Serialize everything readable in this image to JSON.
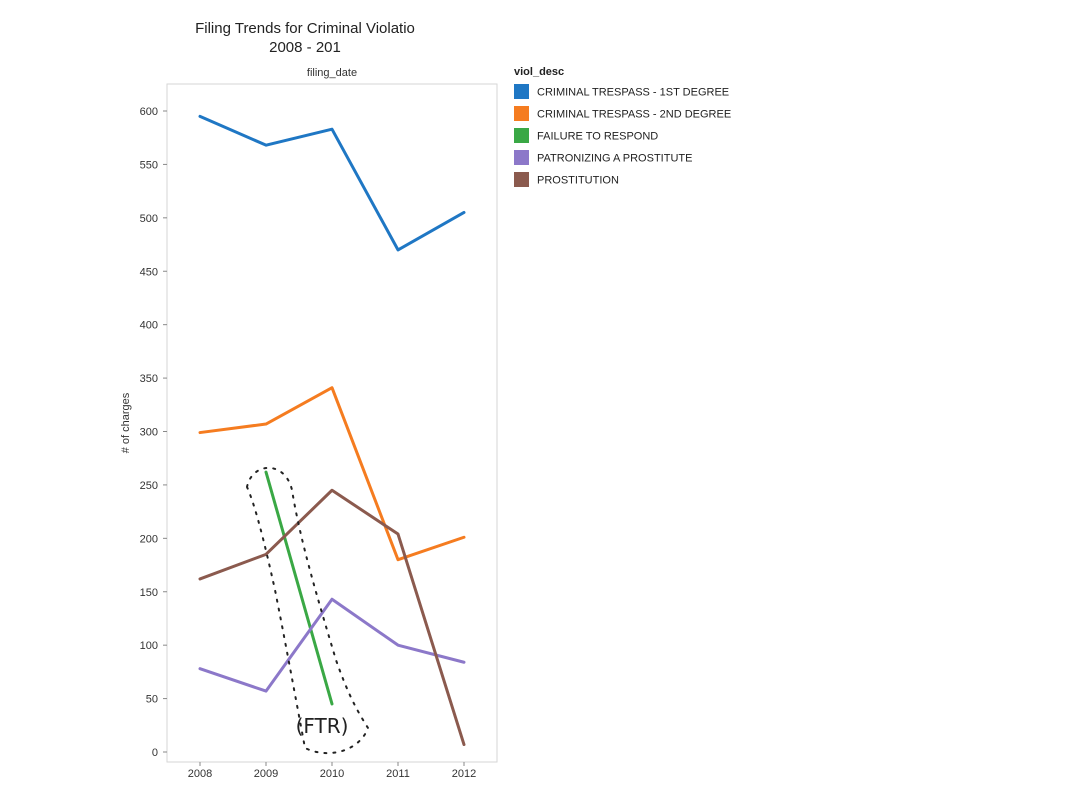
{
  "chart_data": {
    "type": "line",
    "title": "Filing Trends for Criminal Violatio",
    "subtitle": "2008 - 201",
    "xlabel": "filing_date",
    "ylabel": "# of charges",
    "categories": [
      "2008",
      "2009",
      "2010",
      "2011",
      "2012"
    ],
    "ylim": [
      0,
      620
    ],
    "yticks": [
      0,
      50,
      100,
      150,
      200,
      250,
      300,
      350,
      400,
      450,
      500,
      550,
      600
    ],
    "grid": false,
    "legend_title": "viol_desc",
    "legend_position": "top-right, outside plot",
    "series": [
      {
        "name": "CRIMINAL TRESPASS - 1ST DEGREE",
        "color": "#1f77c4",
        "values": [
          595,
          568,
          583,
          470,
          505
        ]
      },
      {
        "name": "CRIMINAL TRESPASS - 2ND DEGREE",
        "color": "#f57c20",
        "values": [
          299,
          307,
          341,
          180,
          201
        ]
      },
      {
        "name": "FAILURE TO RESPOND",
        "color": "#3aa845",
        "values": [
          null,
          262,
          45,
          null,
          null
        ]
      },
      {
        "name": "PATRONIZING A PROSTITUTE",
        "color": "#8c78c9",
        "values": [
          78,
          57,
          143,
          100,
          84
        ]
      },
      {
        "name": "PROSTITUTION",
        "color": "#8b5a4e",
        "values": [
          162,
          185,
          245,
          204,
          7
        ]
      }
    ],
    "annotations": [
      {
        "text": "(FTR)",
        "style": "handwritten",
        "description": "dashed hand-drawn loop around the FAILURE TO RESPOND line"
      }
    ]
  }
}
